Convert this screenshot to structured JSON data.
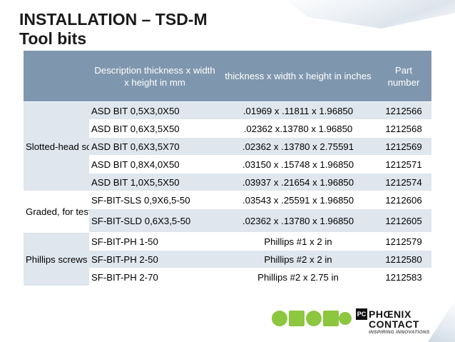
{
  "slide": {
    "title_line1": "INSTALLATION – TSD-M",
    "title_line2": "Tool bits"
  },
  "table": {
    "headers": {
      "description": "Description thickness x width x height in mm",
      "inches": "thickness x width x height in inches",
      "part": "Part number"
    },
    "groups": {
      "slotted": "Slotted-head screws",
      "graded": "Graded, for test socket screws",
      "phillips": "Phillips screws"
    },
    "rows": [
      {
        "description": "ASD BIT 0,5X3,0X50",
        "inches": ".01969 x .11811 x 1.96850",
        "part": "1212566"
      },
      {
        "description": "ASD BIT 0,6X3,5X50",
        "inches": ".02362 x.13780 x 1.96850",
        "part": "1212568"
      },
      {
        "description": "ASD BIT 0,6X3,5X70",
        "inches": ".02362 x .13780 x 2.75591",
        "part": "1212569"
      },
      {
        "description": "ASD BIT 0,8X4,0X50",
        "inches": ".03150 x .15748 x 1.96850",
        "part": "1212571"
      },
      {
        "description": "ASD BIT 1,0X5,5X50",
        "inches": ".03937 x .21654 x 1.96850",
        "part": "1212574"
      },
      {
        "description": "SF-BIT-SLS 0,9X6,5-50",
        "inches": ".03543 x .25591 x 1.96850",
        "part": "1212606"
      },
      {
        "description": "SF-BIT-SLD 0,6X3,5-50",
        "inches": ".02362 x .13780 x 1.96850",
        "part": "1212605"
      },
      {
        "description": "SF-BIT-PH 1-50",
        "inches": "Phillips #1 x 2 in",
        "part": "1212579"
      },
      {
        "description": "SF-BIT-PH 2-50",
        "inches": "Phillips #2 x 2 in",
        "part": "1212580"
      },
      {
        "description": "SF-BIT-PH 2-70",
        "inches": "Phillips #2 x 2.75 in",
        "part": "1212583"
      }
    ]
  },
  "logo": {
    "mark": "PC",
    "line1": "PHŒNIX",
    "line2": "CONTACT",
    "tagline": "INSPIRING INNOVATIONS"
  },
  "colors": {
    "header_bg": "#7f97ae",
    "stripe_bg": "#dfe6ed",
    "logo_green": "#8dc63f"
  }
}
